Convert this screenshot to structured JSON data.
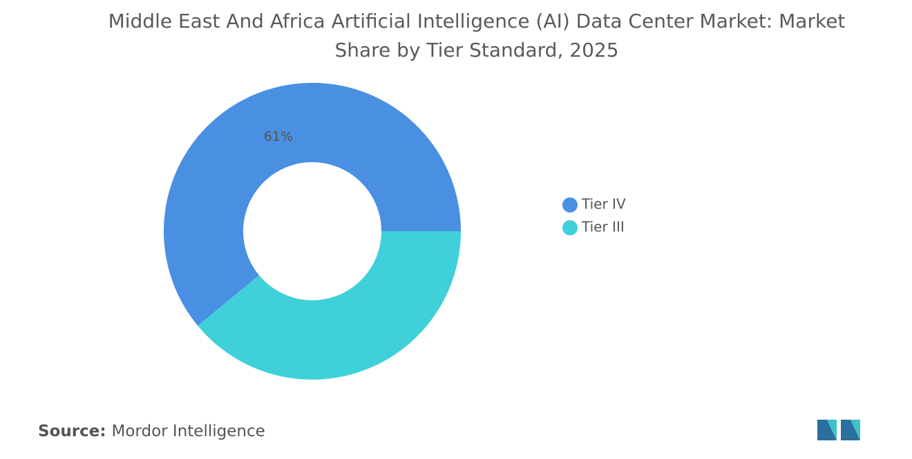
{
  "chart_data": {
    "type": "donut",
    "title": "Middle East And Africa Artificial Intelligence (AI) Data Center Market: Market Share by Tier Standard, 2025",
    "categories": [
      "Tier IV",
      "Tier III"
    ],
    "values": [
      61,
      39
    ],
    "value_labels": [
      "61%",
      null
    ],
    "colors": [
      "#4a90e2",
      "#3fd0d9"
    ],
    "legend": "right"
  },
  "source_label": "Source:",
  "source": "Mordor Intelligence"
}
